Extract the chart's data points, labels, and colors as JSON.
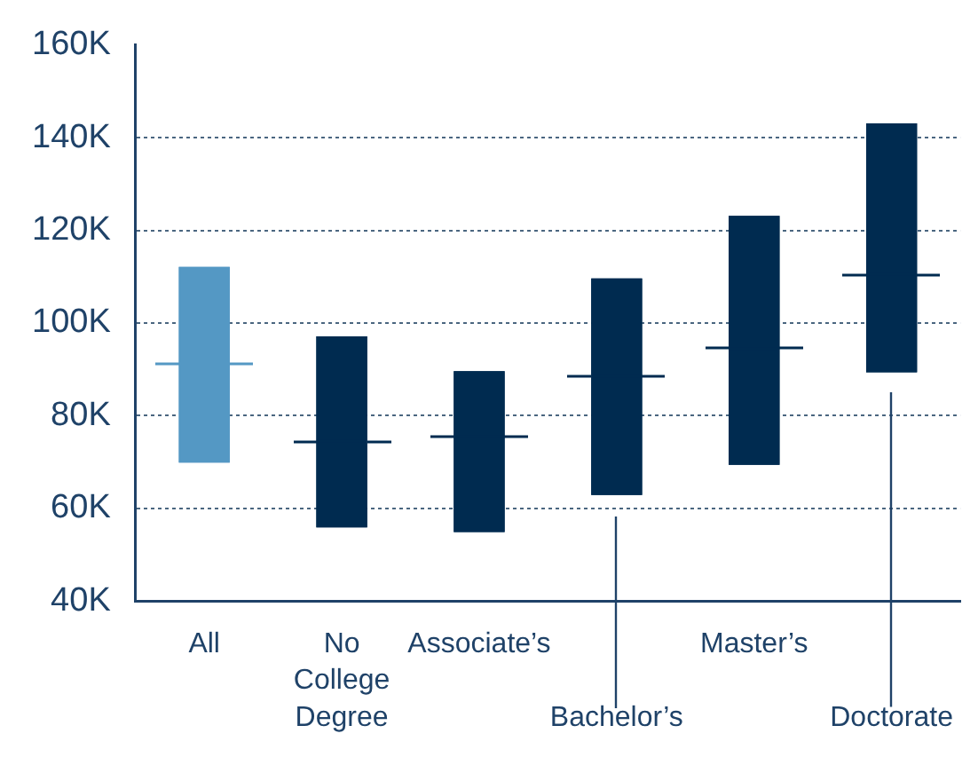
{
  "chart_data": {
    "type": "box",
    "categories": [
      "All",
      "No College Degree",
      "Associate’s",
      "Bachelor’s",
      "Master’s",
      "Doctorate"
    ],
    "colors": [
      "#5498c4",
      "#002b50",
      "#002b50",
      "#002b50",
      "#002b50",
      "#002b50"
    ],
    "boxes": [
      {
        "low": 70,
        "q1": 70,
        "median": 91,
        "q3": 112,
        "high": 112
      },
      {
        "low": 56,
        "q1": 56,
        "median": 74.5,
        "q3": 97,
        "high": 97
      },
      {
        "low": 55,
        "q1": 55,
        "median": 75.5,
        "q3": 89.5,
        "high": 89.5
      },
      {
        "low": 63,
        "q1": 63,
        "median": 88.5,
        "q3": 109.5,
        "high": 109.5
      },
      {
        "low": 69.5,
        "q1": 69.5,
        "median": 94.5,
        "q3": 123,
        "high": 123
      },
      {
        "low": 89.5,
        "q1": 89.5,
        "median": 110.5,
        "q3": 143,
        "high": 143
      }
    ],
    "ylim": [
      40,
      160
    ],
    "yticks": [
      {
        "value": 40,
        "label": "40K"
      },
      {
        "value": 60,
        "label": "60K"
      },
      {
        "value": 80,
        "label": "80K"
      },
      {
        "value": 100,
        "label": "100K"
      },
      {
        "value": 120,
        "label": "120K"
      },
      {
        "value": 140,
        "label": "140K"
      },
      {
        "value": 160,
        "label": "160K"
      }
    ],
    "grid": "y",
    "legend": false
  }
}
